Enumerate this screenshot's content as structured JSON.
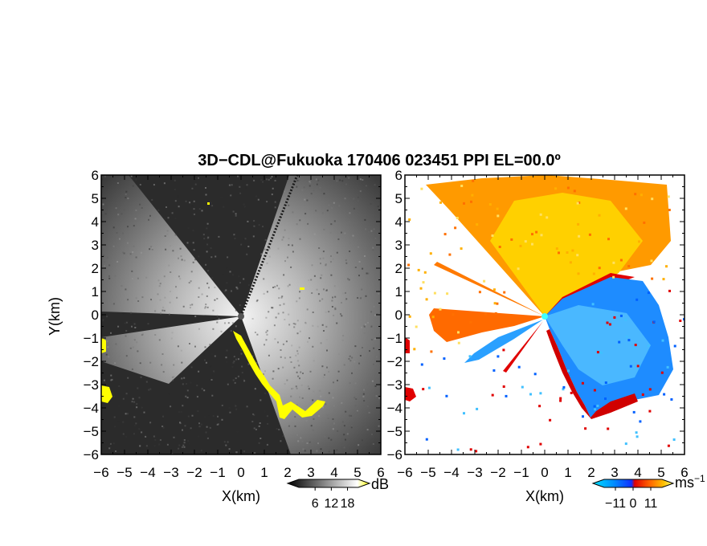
{
  "chart_data": {
    "type": "heatmap",
    "title": "3D−CDL@Fukuoka 170406 023451 PPI EL=00.0º",
    "panels": [
      {
        "id": "snr",
        "xlabel": "X(km)",
        "ylabel": "Y(km)",
        "xlim": [
          -6,
          6
        ],
        "ylim": [
          -6,
          6
        ],
        "ticks": [
          -6,
          -5,
          -4,
          -3,
          -2,
          -1,
          0,
          1,
          2,
          3,
          4,
          5,
          6
        ],
        "tick_labels": [
          "−6",
          "−5",
          "−4",
          "−3",
          "−2",
          "−1",
          "0",
          "1",
          "2",
          "3",
          "4",
          "5",
          "6"
        ],
        "colorbar": {
          "unit": "dB",
          "ticks": [
            6,
            12,
            18
          ],
          "tick_labels": [
            "6",
            "12",
            "18"
          ],
          "colors": [
            "#000000",
            "#2a2a2a",
            "#555555",
            "#808080",
            "#aaaaaa",
            "#d5d5d5",
            "#ffffff",
            "#ffff00"
          ]
        }
      },
      {
        "id": "velocity",
        "xlabel": "X(km)",
        "ylabel": "",
        "xlim": [
          -6,
          6
        ],
        "ylim": [
          -6,
          6
        ],
        "ticks": [
          -6,
          -5,
          -4,
          -3,
          -2,
          -1,
          0,
          1,
          2,
          3,
          4,
          5,
          6
        ],
        "tick_labels": [
          "−6",
          "−5",
          "−4",
          "−3",
          "−2",
          "−1",
          "0",
          "1",
          "2",
          "3",
          "4",
          "5",
          "6"
        ],
        "colorbar": {
          "unit": "ms",
          "unit_sup": "−1",
          "ticks": [
            -11,
            0,
            11
          ],
          "tick_labels": [
            "−11",
            "0",
            "11"
          ],
          "colors": [
            "#00d0ff",
            "#0090ff",
            "#1040ff",
            "#e00000",
            "#ff5000",
            "#ff9000",
            "#ffd000",
            "#ffff80"
          ]
        }
      }
    ]
  }
}
